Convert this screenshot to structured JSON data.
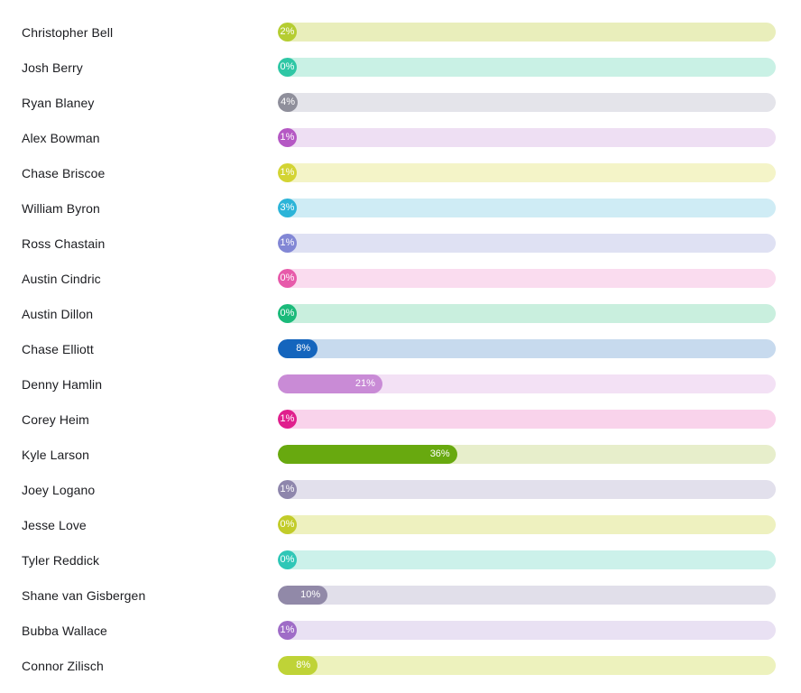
{
  "chart_data": {
    "type": "bar",
    "orientation": "horizontal",
    "title": "",
    "xlabel": "",
    "ylabel": "",
    "xlim": [
      0,
      100
    ],
    "value_unit": "percent",
    "grid": false,
    "legend": false,
    "categories": [
      "Christopher Bell",
      "Josh Berry",
      "Ryan Blaney",
      "Alex Bowman",
      "Chase Briscoe",
      "William Byron",
      "Ross Chastain",
      "Austin Cindric",
      "Austin Dillon",
      "Chase Elliott",
      "Denny Hamlin",
      "Corey Heim",
      "Kyle Larson",
      "Joey Logano",
      "Jesse Love",
      "Tyler Reddick",
      "Shane van Gisbergen",
      "Bubba Wallace",
      "Connor Zilisch"
    ],
    "values": [
      2,
      0,
      4,
      1,
      1,
      3,
      1,
      0,
      0,
      8,
      21,
      1,
      36,
      1,
      0,
      0,
      10,
      1,
      8
    ],
    "bars": [
      {
        "label": "Christopher Bell",
        "value": 2,
        "value_label": "2%",
        "fill": "#b5cd32",
        "track": "#e9eebb"
      },
      {
        "label": "Josh Berry",
        "value": 0,
        "value_label": "0%",
        "fill": "#2fc7a5",
        "track": "#c9f1e5"
      },
      {
        "label": "Ryan Blaney",
        "value": 4,
        "value_label": "4%",
        "fill": "#8f8f9b",
        "track": "#e4e4ea"
      },
      {
        "label": "Alex Bowman",
        "value": 1,
        "value_label": "1%",
        "fill": "#b558c4",
        "track": "#eedff3"
      },
      {
        "label": "Chase Briscoe",
        "value": 1,
        "value_label": "1%",
        "fill": "#d3d434",
        "track": "#f4f4c8"
      },
      {
        "label": "William Byron",
        "value": 3,
        "value_label": "3%",
        "fill": "#2cb4d8",
        "track": "#cfecf5"
      },
      {
        "label": "Ross Chastain",
        "value": 1,
        "value_label": "1%",
        "fill": "#8287d5",
        "track": "#dfe1f3"
      },
      {
        "label": "Austin Cindric",
        "value": 0,
        "value_label": "0%",
        "fill": "#e75aaa",
        "track": "#fadcef"
      },
      {
        "label": "Austin Dillon",
        "value": 0,
        "value_label": "0%",
        "fill": "#1bba7a",
        "track": "#c9efde"
      },
      {
        "label": "Chase Elliott",
        "value": 8,
        "value_label": "8%",
        "fill": "#1465bd",
        "track": "#c7daee"
      },
      {
        "label": "Denny Hamlin",
        "value": 21,
        "value_label": "21%",
        "fill": "#c98bd6",
        "track": "#f3e1f5"
      },
      {
        "label": "Corey Heim",
        "value": 1,
        "value_label": "1%",
        "fill": "#e01f8d",
        "track": "#f9d3eb"
      },
      {
        "label": "Kyle Larson",
        "value": 36,
        "value_label": "36%",
        "fill": "#68a90f",
        "track": "#e7eecb"
      },
      {
        "label": "Joey Logano",
        "value": 1,
        "value_label": "1%",
        "fill": "#8e86ac",
        "track": "#e2e0ec"
      },
      {
        "label": "Jesse Love",
        "value": 0,
        "value_label": "0%",
        "fill": "#c2cc2a",
        "track": "#eef1bf"
      },
      {
        "label": "Tyler Reddick",
        "value": 0,
        "value_label": "0%",
        "fill": "#2fc7b7",
        "track": "#ccf1ea"
      },
      {
        "label": "Shane van Gisbergen",
        "value": 10,
        "value_label": "10%",
        "fill": "#9189a8",
        "track": "#e1dfea"
      },
      {
        "label": "Bubba Wallace",
        "value": 1,
        "value_label": "1%",
        "fill": "#9f6cc7",
        "track": "#e9e1f3"
      },
      {
        "label": "Connor Zilisch",
        "value": 8,
        "value_label": "8%",
        "fill": "#bfd337",
        "track": "#edf2bd"
      }
    ]
  }
}
